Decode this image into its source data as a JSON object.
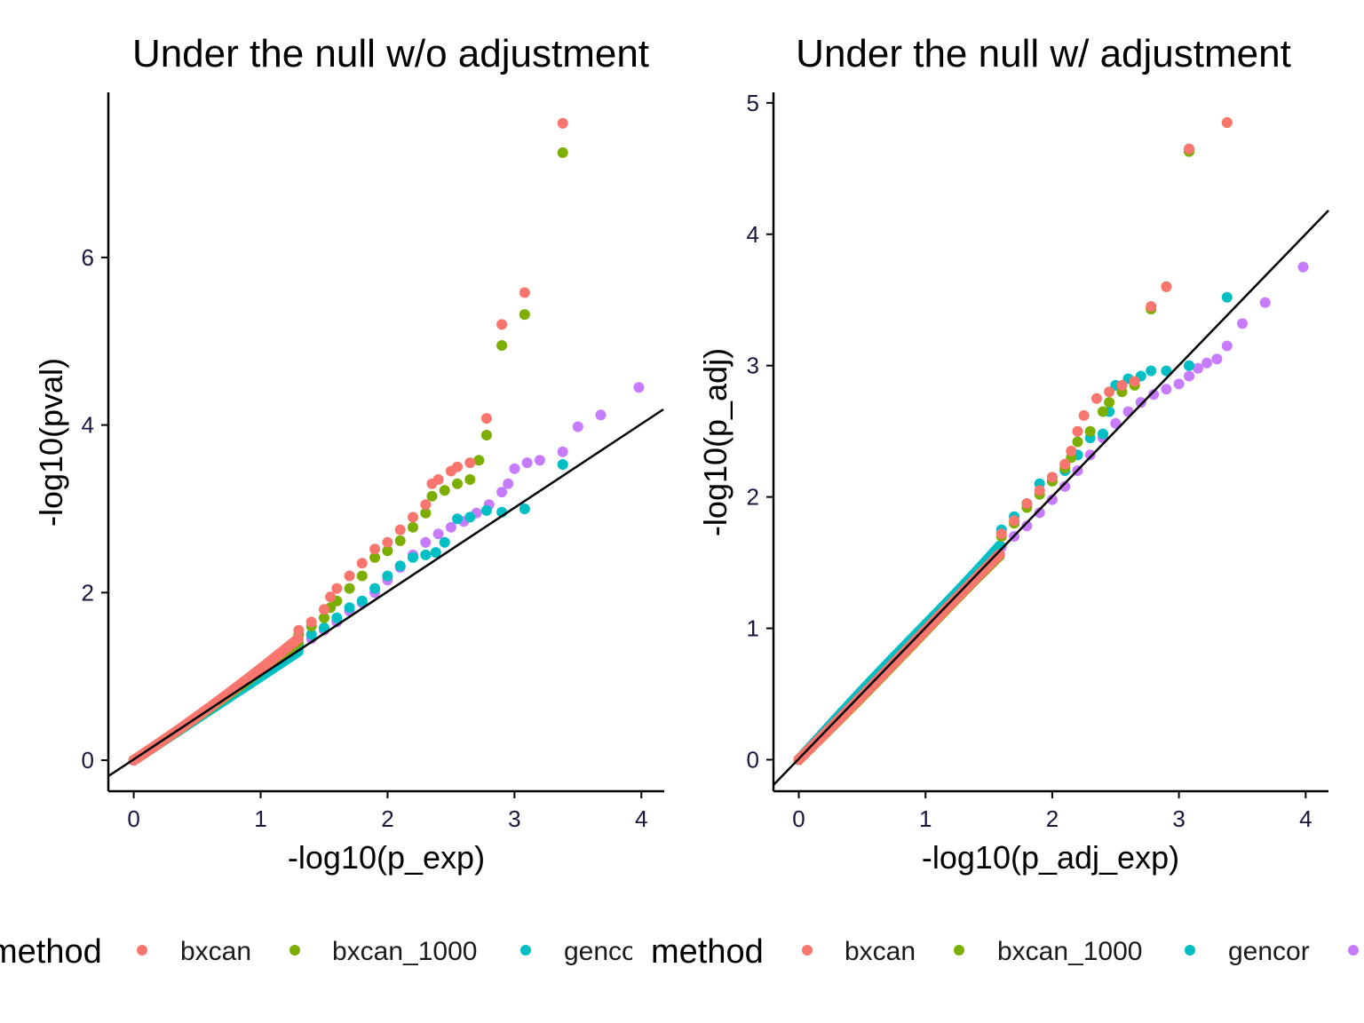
{
  "legend": {
    "title": "method",
    "entries": [
      {
        "label": "bxcan",
        "color": "#F8766D"
      },
      {
        "label": "bxcan_1000",
        "color": "#7CAE00"
      },
      {
        "label": "gencor",
        "color": "#00BFC4"
      },
      {
        "label": "",
        "color": "#C77CFF"
      }
    ]
  },
  "chart_data": [
    {
      "type": "scatter",
      "title": "Under the null w/o adjustment",
      "xlabel": "-log10(p_exp)",
      "ylabel": "-log10(pval)",
      "xlim": [
        -0.2,
        4.18
      ],
      "ylim": [
        -0.37,
        7.97
      ],
      "xticks": [
        0,
        1,
        2,
        3,
        4
      ],
      "yticks": [
        0,
        2,
        4,
        6
      ],
      "grid": false,
      "reference_line": {
        "slope": 1,
        "intercept": 0
      },
      "series": [
        {
          "name": "bxcan",
          "color": "#F8766D",
          "tail_points": [
            [
              1.3,
              1.55
            ],
            [
              1.4,
              1.65
            ],
            [
              1.5,
              1.8
            ],
            [
              1.55,
              1.95
            ],
            [
              1.6,
              2.05
            ],
            [
              1.7,
              2.2
            ],
            [
              1.8,
              2.35
            ],
            [
              1.9,
              2.52
            ],
            [
              2.0,
              2.6
            ],
            [
              2.1,
              2.75
            ],
            [
              2.2,
              2.9
            ],
            [
              2.3,
              3.05
            ],
            [
              2.35,
              3.3
            ],
            [
              2.4,
              3.35
            ],
            [
              2.5,
              3.45
            ],
            [
              2.55,
              3.5
            ],
            [
              2.65,
              3.55
            ],
            [
              2.78,
              4.08
            ],
            [
              2.9,
              5.2
            ],
            [
              3.08,
              5.58
            ],
            [
              3.38,
              7.6
            ]
          ]
        },
        {
          "name": "bxcan_1000",
          "color": "#7CAE00",
          "tail_points": [
            [
              1.3,
              1.5
            ],
            [
              1.4,
              1.6
            ],
            [
              1.5,
              1.7
            ],
            [
              1.55,
              1.82
            ],
            [
              1.6,
              1.9
            ],
            [
              1.7,
              2.05
            ],
            [
              1.8,
              2.2
            ],
            [
              1.9,
              2.42
            ],
            [
              2.0,
              2.5
            ],
            [
              2.1,
              2.62
            ],
            [
              2.2,
              2.78
            ],
            [
              2.3,
              2.95
            ],
            [
              2.35,
              3.15
            ],
            [
              2.45,
              3.22
            ],
            [
              2.55,
              3.3
            ],
            [
              2.65,
              3.35
            ],
            [
              2.72,
              3.58
            ],
            [
              2.78,
              3.88
            ],
            [
              2.9,
              4.95
            ],
            [
              3.08,
              5.32
            ],
            [
              3.38,
              7.25
            ]
          ]
        },
        {
          "name": "gencor",
          "color": "#00BFC4",
          "tail_points": [
            [
              1.3,
              1.38
            ],
            [
              1.4,
              1.5
            ],
            [
              1.5,
              1.58
            ],
            [
              1.6,
              1.7
            ],
            [
              1.7,
              1.82
            ],
            [
              1.8,
              1.9
            ],
            [
              1.9,
              2.05
            ],
            [
              2.0,
              2.2
            ],
            [
              2.1,
              2.32
            ],
            [
              2.2,
              2.42
            ],
            [
              2.3,
              2.45
            ],
            [
              2.38,
              2.48
            ],
            [
              2.45,
              2.6
            ],
            [
              2.55,
              2.88
            ],
            [
              2.65,
              2.9
            ],
            [
              2.78,
              2.98
            ],
            [
              2.9,
              2.96
            ],
            [
              3.08,
              3.0
            ],
            [
              3.38,
              3.53
            ]
          ]
        },
        {
          "name": "",
          "color": "#C77CFF",
          "tail_points": [
            [
              1.3,
              1.35
            ],
            [
              1.4,
              1.45
            ],
            [
              1.5,
              1.55
            ],
            [
              1.6,
              1.65
            ],
            [
              1.7,
              1.78
            ],
            [
              1.8,
              1.88
            ],
            [
              1.9,
              2.0
            ],
            [
              2.0,
              2.15
            ],
            [
              2.1,
              2.3
            ],
            [
              2.2,
              2.45
            ],
            [
              2.3,
              2.6
            ],
            [
              2.4,
              2.7
            ],
            [
              2.5,
              2.78
            ],
            [
              2.6,
              2.85
            ],
            [
              2.7,
              2.95
            ],
            [
              2.8,
              3.05
            ],
            [
              2.9,
              3.2
            ],
            [
              2.95,
              3.3
            ],
            [
              3.0,
              3.48
            ],
            [
              3.1,
              3.55
            ],
            [
              3.2,
              3.58
            ],
            [
              3.38,
              3.68
            ],
            [
              3.5,
              3.98
            ],
            [
              3.68,
              4.12
            ],
            [
              3.98,
              4.45
            ]
          ]
        }
      ]
    },
    {
      "type": "scatter",
      "title": "Under the null w/ adjustment",
      "xlabel": "-log10(p_adj_exp)",
      "ylabel": "-log10(p_adj)",
      "xlim": [
        -0.2,
        4.18
      ],
      "ylim": [
        -0.24,
        5.08
      ],
      "xticks": [
        0,
        1,
        2,
        3,
        4
      ],
      "yticks": [
        0,
        1,
        2,
        3,
        4,
        5
      ],
      "grid": false,
      "reference_line": {
        "slope": 1,
        "intercept": 0
      },
      "series": [
        {
          "name": "bxcan",
          "color": "#F8766D",
          "tail_points": [
            [
              1.6,
              1.72
            ],
            [
              1.7,
              1.82
            ],
            [
              1.8,
              1.95
            ],
            [
              1.9,
              2.05
            ],
            [
              2.0,
              2.15
            ],
            [
              2.1,
              2.25
            ],
            [
              2.15,
              2.35
            ],
            [
              2.2,
              2.5
            ],
            [
              2.25,
              2.62
            ],
            [
              2.35,
              2.75
            ],
            [
              2.45,
              2.8
            ],
            [
              2.55,
              2.85
            ],
            [
              2.65,
              2.88
            ],
            [
              2.78,
              3.45
            ],
            [
              2.9,
              3.6
            ],
            [
              3.08,
              4.65
            ],
            [
              3.38,
              4.85
            ]
          ]
        },
        {
          "name": "bxcan_1000",
          "color": "#7CAE00",
          "tail_points": [
            [
              1.6,
              1.7
            ],
            [
              1.7,
              1.8
            ],
            [
              1.8,
              1.92
            ],
            [
              1.9,
              2.02
            ],
            [
              2.0,
              2.12
            ],
            [
              2.1,
              2.22
            ],
            [
              2.15,
              2.3
            ],
            [
              2.2,
              2.42
            ],
            [
              2.3,
              2.5
            ],
            [
              2.4,
              2.65
            ],
            [
              2.45,
              2.72
            ],
            [
              2.55,
              2.8
            ],
            [
              2.65,
              2.85
            ],
            [
              2.78,
              3.43
            ],
            [
              2.9,
              3.6
            ],
            [
              3.08,
              4.63
            ],
            [
              3.38,
              4.85
            ]
          ]
        },
        {
          "name": "gencor",
          "color": "#00BFC4",
          "tail_points": [
            [
              1.6,
              1.75
            ],
            [
              1.7,
              1.85
            ],
            [
              1.8,
              1.95
            ],
            [
              1.9,
              2.1
            ],
            [
              2.0,
              2.15
            ],
            [
              2.1,
              2.2
            ],
            [
              2.2,
              2.32
            ],
            [
              2.3,
              2.45
            ],
            [
              2.4,
              2.48
            ],
            [
              2.45,
              2.65
            ],
            [
              2.5,
              2.85
            ],
            [
              2.6,
              2.9
            ],
            [
              2.7,
              2.92
            ],
            [
              2.78,
              2.96
            ],
            [
              2.9,
              2.96
            ],
            [
              3.08,
              3.0
            ],
            [
              3.38,
              3.52
            ]
          ]
        },
        {
          "name": "",
          "color": "#C77CFF",
          "tail_points": [
            [
              1.6,
              1.62
            ],
            [
              1.7,
              1.7
            ],
            [
              1.8,
              1.78
            ],
            [
              1.9,
              1.88
            ],
            [
              2.0,
              1.98
            ],
            [
              2.1,
              2.08
            ],
            [
              2.2,
              2.2
            ],
            [
              2.3,
              2.32
            ],
            [
              2.4,
              2.45
            ],
            [
              2.5,
              2.56
            ],
            [
              2.6,
              2.65
            ],
            [
              2.7,
              2.72
            ],
            [
              2.8,
              2.78
            ],
            [
              2.9,
              2.82
            ],
            [
              3.0,
              2.86
            ],
            [
              3.08,
              2.92
            ],
            [
              3.15,
              2.98
            ],
            [
              3.22,
              3.02
            ],
            [
              3.3,
              3.05
            ],
            [
              3.38,
              3.15
            ],
            [
              3.5,
              3.32
            ],
            [
              3.68,
              3.48
            ],
            [
              3.98,
              3.75
            ]
          ]
        }
      ]
    }
  ]
}
